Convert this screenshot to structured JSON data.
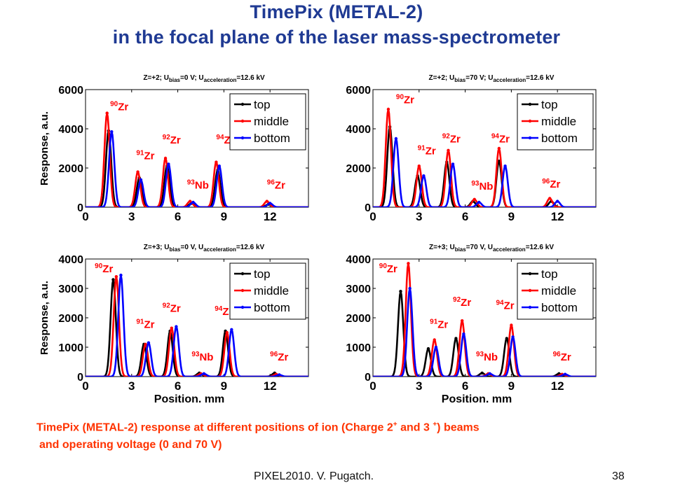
{
  "title_line1": "TimePix (METAL-2)",
  "title_line2": "in the focal plane of the laser mass-spectrometer",
  "caption": {
    "part1": "TimePix (METAL-2) response at different positions of ion (Charge 2",
    "sup1": "+",
    "part2": " and 3 ",
    "sup2": "+",
    "part3": ")  beams",
    "line2": "and operating voltage (0 and 70 V)"
  },
  "footer_left": "PIXEL2010. V. Pugatch.",
  "footer_right": "38",
  "colors": {
    "title": "#1f3a93",
    "caption": "#ff3300",
    "top": "#000000",
    "middle": "#ff0000",
    "bottom": "#0000ff",
    "peak_label": "#ff0000"
  },
  "chart_data": [
    {
      "type": "line",
      "header": {
        "z": "Z=+2;",
        "u": " U",
        "bias": "bias",
        "bias_val": "=0 V;  U",
        "acc": "acceleration",
        "acc_val": "=12.6 kV"
      },
      "ylabel": "Response, a.u.",
      "xlabel": "",
      "xlim": [
        0,
        14.5
      ],
      "ylim": [
        0,
        6000
      ],
      "xticks": [
        "0",
        "3",
        "6",
        "9",
        "12"
      ],
      "yticks": [
        "0",
        "2000",
        "4000",
        "6000"
      ],
      "legend": [
        "top",
        "middle",
        "bottom"
      ],
      "legend_position": "top-right",
      "peak_labels": [
        {
          "mass": "90",
          "el": "Zr",
          "x": 1.6,
          "y": 4950
        },
        {
          "mass": "91",
          "el": "Zr",
          "x": 3.3,
          "y": 2450
        },
        {
          "mass": "92",
          "el": "Zr",
          "x": 5.0,
          "y": 3250
        },
        {
          "mass": "93",
          "el": "Nb",
          "x": 6.6,
          "y": 950
        },
        {
          "mass": "94",
          "el": "Zr",
          "x": 8.5,
          "y": 3250
        },
        {
          "mass": "96",
          "el": "Zr",
          "x": 11.8,
          "y": 950
        }
      ],
      "series": [
        {
          "name": "top",
          "peaks": [
            {
              "x": 1.5,
              "h": 3900
            },
            {
              "x": 3.5,
              "h": 1500
            },
            {
              "x": 5.3,
              "h": 2100
            },
            {
              "x": 6.9,
              "h": 200
            },
            {
              "x": 8.6,
              "h": 1900
            },
            {
              "x": 11.9,
              "h": 150
            }
          ]
        },
        {
          "name": "middle",
          "peaks": [
            {
              "x": 1.4,
              "h": 4800
            },
            {
              "x": 3.4,
              "h": 1800
            },
            {
              "x": 5.2,
              "h": 2500
            },
            {
              "x": 6.8,
              "h": 300
            },
            {
              "x": 8.5,
              "h": 2300
            },
            {
              "x": 11.8,
              "h": 300
            }
          ]
        },
        {
          "name": "bottom",
          "peaks": [
            {
              "x": 1.7,
              "h": 3850
            },
            {
              "x": 3.6,
              "h": 1400
            },
            {
              "x": 5.4,
              "h": 2200
            },
            {
              "x": 7.0,
              "h": 250
            },
            {
              "x": 8.7,
              "h": 2100
            },
            {
              "x": 12.0,
              "h": 200
            }
          ]
        }
      ]
    },
    {
      "type": "line",
      "header": {
        "z": "Z=+2;",
        "u": " U",
        "bias": "bias",
        "bias_val": "=70 V;  U",
        "acc": "acceleration",
        "acc_val": "=12.6 kV"
      },
      "ylabel": "",
      "xlabel": "",
      "xlim": [
        0,
        14.5
      ],
      "ylim": [
        0,
        6000
      ],
      "xticks": [
        "0",
        "3",
        "6",
        "9",
        "12"
      ],
      "yticks": [
        "0",
        "2000",
        "4000",
        "6000"
      ],
      "legend": [
        "top",
        "middle",
        "bottom"
      ],
      "legend_position": "top-right",
      "peak_labels": [
        {
          "mass": "90",
          "el": "Zr",
          "x": 1.5,
          "y": 5300
        },
        {
          "mass": "91",
          "el": "Zr",
          "x": 2.9,
          "y": 2700
        },
        {
          "mass": "92",
          "el": "Zr",
          "x": 4.5,
          "y": 3300
        },
        {
          "mass": "93",
          "el": "Nb",
          "x": 6.4,
          "y": 900
        },
        {
          "mass": "94",
          "el": "Zr",
          "x": 7.7,
          "y": 3300
        },
        {
          "mass": "96",
          "el": "Zr",
          "x": 11.0,
          "y": 1000
        }
      ],
      "series": [
        {
          "name": "top",
          "peaks": [
            {
              "x": 1.1,
              "h": 4100
            },
            {
              "x": 2.9,
              "h": 1600
            },
            {
              "x": 4.8,
              "h": 2300
            },
            {
              "x": 6.5,
              "h": 300
            },
            {
              "x": 8.2,
              "h": 2350
            },
            {
              "x": 11.6,
              "h": 300
            }
          ]
        },
        {
          "name": "middle",
          "peaks": [
            {
              "x": 1.0,
              "h": 5000
            },
            {
              "x": 3.0,
              "h": 2100
            },
            {
              "x": 4.9,
              "h": 2900
            },
            {
              "x": 6.6,
              "h": 400
            },
            {
              "x": 8.2,
              "h": 3000
            },
            {
              "x": 11.5,
              "h": 450
            }
          ]
        },
        {
          "name": "bottom",
          "peaks": [
            {
              "x": 1.5,
              "h": 3500
            },
            {
              "x": 3.3,
              "h": 1600
            },
            {
              "x": 5.2,
              "h": 2200
            },
            {
              "x": 6.9,
              "h": 250
            },
            {
              "x": 8.6,
              "h": 2100
            },
            {
              "x": 12.0,
              "h": 300
            }
          ]
        }
      ]
    },
    {
      "type": "line",
      "header": {
        "z": "Z=+3;",
        "u": " U",
        "bias": "bias",
        "bias_val": "=0 V,  U",
        "acc": "acceleration",
        "acc_val": "=12.6 kV"
      },
      "ylabel": "Response, a.u.",
      "xlabel": "Position, mm",
      "xlim": [
        0,
        14.5
      ],
      "ylim": [
        0,
        4000
      ],
      "xticks": [
        "0",
        "3",
        "6",
        "9",
        "12"
      ],
      "yticks": [
        "0",
        "1000",
        "2000",
        "3000",
        "4000"
      ],
      "legend": [
        "top",
        "middle",
        "bottom"
      ],
      "legend_position": "top-right",
      "peak_labels": [
        {
          "mass": "90",
          "el": "Zr",
          "x": 0.6,
          "y": 3550
        },
        {
          "mass": "91",
          "el": "Zr",
          "x": 3.3,
          "y": 1650
        },
        {
          "mass": "92",
          "el": "Zr",
          "x": 5.0,
          "y": 2200
        },
        {
          "mass": "93",
          "el": "Nb",
          "x": 6.9,
          "y": 550
        },
        {
          "mass": "94",
          "el": "Zr",
          "x": 8.4,
          "y": 2100
        },
        {
          "mass": "96",
          "el": "Zr",
          "x": 12.0,
          "y": 550
        }
      ],
      "series": [
        {
          "name": "top",
          "peaks": [
            {
              "x": 1.8,
              "h": 3300
            },
            {
              "x": 3.8,
              "h": 1100
            },
            {
              "x": 5.5,
              "h": 1550
            },
            {
              "x": 7.4,
              "h": 120
            },
            {
              "x": 9.1,
              "h": 1550
            },
            {
              "x": 12.3,
              "h": 120
            }
          ]
        },
        {
          "name": "middle",
          "peaks": [
            {
              "x": 2.0,
              "h": 3400
            },
            {
              "x": 3.9,
              "h": 1100
            },
            {
              "x": 5.6,
              "h": 1650
            },
            {
              "x": 7.5,
              "h": 100
            },
            {
              "x": 9.2,
              "h": 1500
            },
            {
              "x": 12.4,
              "h": 80
            }
          ]
        },
        {
          "name": "bottom",
          "peaks": [
            {
              "x": 2.3,
              "h": 3450
            },
            {
              "x": 4.1,
              "h": 1150
            },
            {
              "x": 5.9,
              "h": 1700
            },
            {
              "x": 7.7,
              "h": 100
            },
            {
              "x": 9.5,
              "h": 1600
            },
            {
              "x": 12.6,
              "h": 60
            }
          ]
        }
      ]
    },
    {
      "type": "line",
      "header": {
        "z": "Z=+3;",
        "u": " U",
        "bias": "bias",
        "bias_val": "=70 V,  U",
        "acc": "acceleration",
        "acc_val": "=12.6 kV"
      },
      "ylabel": "",
      "xlabel": "Position, mm",
      "xlim": [
        0,
        14.5
      ],
      "ylim": [
        0,
        4000
      ],
      "xticks": [
        "0",
        "3",
        "6",
        "9",
        "12"
      ],
      "yticks": [
        "0",
        "1000",
        "2000",
        "3000",
        "4000"
      ],
      "legend": [
        "top",
        "middle",
        "bottom"
      ],
      "legend_position": "top-right",
      "peak_labels": [
        {
          "mass": "90",
          "el": "Zr",
          "x": 0.4,
          "y": 3550
        },
        {
          "mass": "91",
          "el": "Zr",
          "x": 3.7,
          "y": 1650
        },
        {
          "mass": "92",
          "el": "Zr",
          "x": 5.2,
          "y": 2400
        },
        {
          "mass": "93",
          "el": "Nb",
          "x": 6.7,
          "y": 550
        },
        {
          "mass": "94",
          "el": "Zr",
          "x": 8.0,
          "y": 2300
        },
        {
          "mass": "96",
          "el": "Zr",
          "x": 11.7,
          "y": 550
        }
      ],
      "series": [
        {
          "name": "top",
          "peaks": [
            {
              "x": 1.8,
              "h": 2900
            },
            {
              "x": 3.6,
              "h": 950
            },
            {
              "x": 5.4,
              "h": 1300
            },
            {
              "x": 7.1,
              "h": 120
            },
            {
              "x": 8.7,
              "h": 1300
            },
            {
              "x": 12.1,
              "h": 100
            }
          ]
        },
        {
          "name": "middle",
          "peaks": [
            {
              "x": 2.3,
              "h": 3850
            },
            {
              "x": 4.0,
              "h": 1250
            },
            {
              "x": 5.8,
              "h": 1900
            },
            {
              "x": 7.5,
              "h": 100
            },
            {
              "x": 9.0,
              "h": 1750
            },
            {
              "x": 12.3,
              "h": 80
            }
          ]
        },
        {
          "name": "bottom",
          "peaks": [
            {
              "x": 2.4,
              "h": 3000
            },
            {
              "x": 4.1,
              "h": 1000
            },
            {
              "x": 5.9,
              "h": 1450
            },
            {
              "x": 7.6,
              "h": 100
            },
            {
              "x": 9.1,
              "h": 1350
            },
            {
              "x": 12.5,
              "h": 80
            }
          ]
        }
      ]
    }
  ]
}
